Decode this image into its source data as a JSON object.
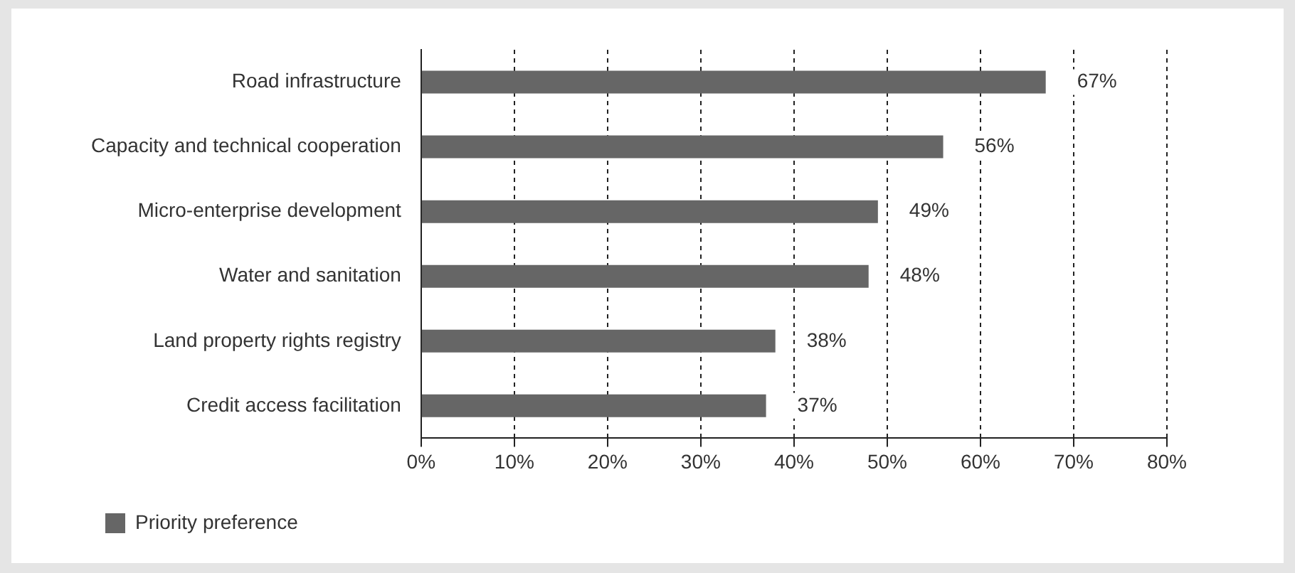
{
  "chart_data": {
    "type": "bar",
    "orientation": "horizontal",
    "categories": [
      "Road infrastructure",
      "Capacity and technical cooperation",
      "Micro-enterprise development",
      "Water and sanitation",
      "Land property rights registry",
      "Credit access facilitation"
    ],
    "series": [
      {
        "name": "Priority preference",
        "color": "#666666",
        "values": [
          67,
          56,
          49,
          48,
          38,
          37
        ],
        "value_labels": [
          "67%",
          "56%",
          "49%",
          "48%",
          "38%",
          "37%"
        ]
      }
    ],
    "xlim": [
      0,
      80
    ],
    "xticks": [
      {
        "value": 0,
        "label": "0%"
      },
      {
        "value": 10,
        "label": "10%"
      },
      {
        "value": 20,
        "label": "20%"
      },
      {
        "value": 30,
        "label": "30%"
      },
      {
        "value": 40,
        "label": "40%"
      },
      {
        "value": 50,
        "label": "50%"
      },
      {
        "value": 60,
        "label": "60%"
      },
      {
        "value": 70,
        "label": "70%"
      },
      {
        "value": 80,
        "label": "80%"
      }
    ],
    "grid": "x",
    "legend": "bottom left"
  }
}
